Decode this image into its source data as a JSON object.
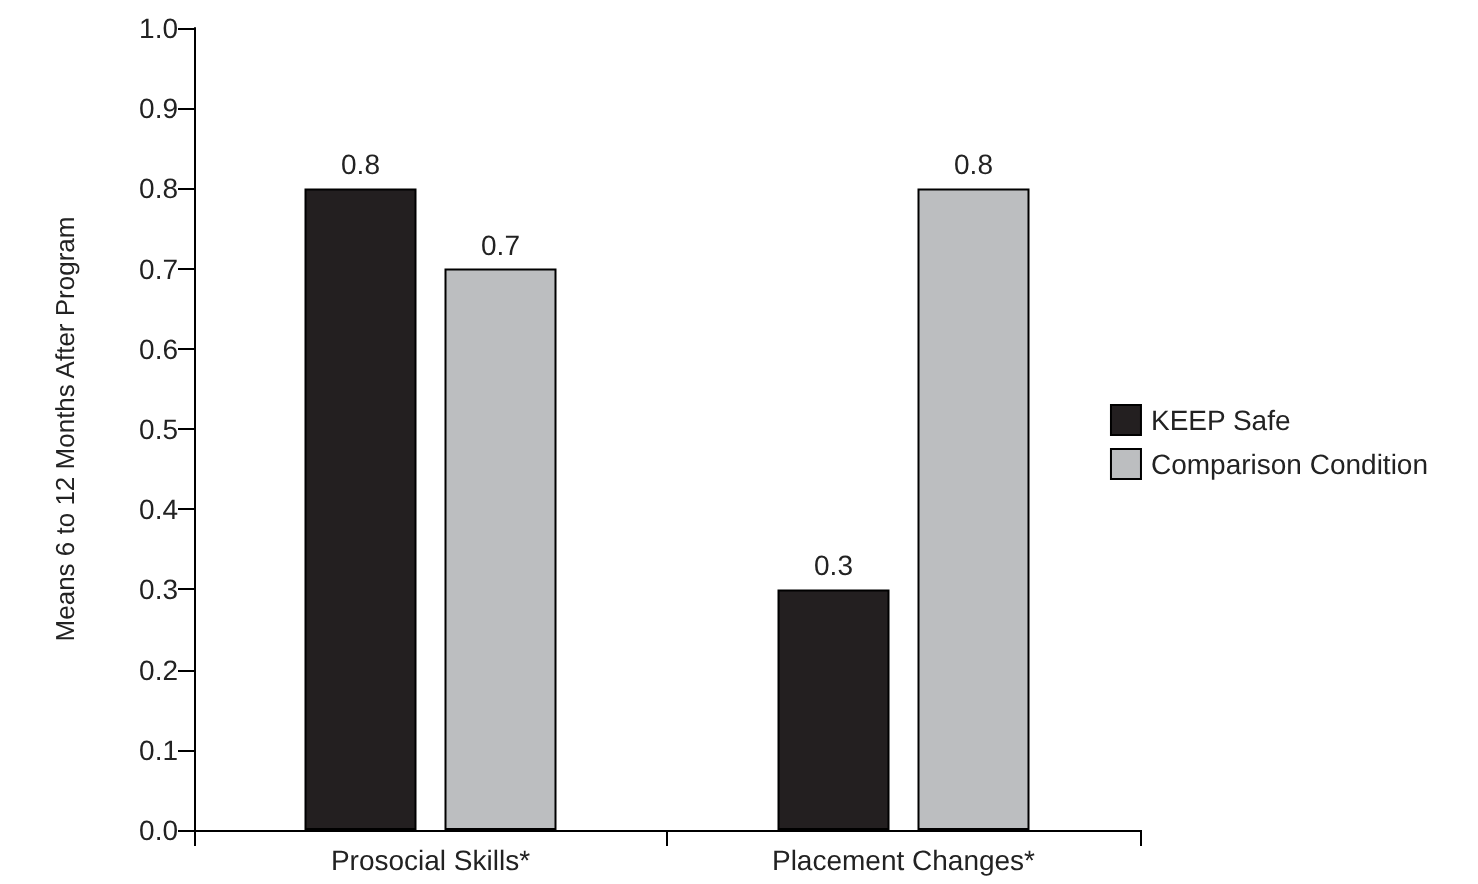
{
  "chart_data": {
    "type": "bar",
    "ylabel": "Means 6 to 12 Months After Program",
    "categories": [
      "Prosocial Skills*",
      "Placement Changes*"
    ],
    "series": [
      {
        "name": "KEEP Safe",
        "color": "#231f20",
        "values": [
          0.8,
          0.3
        ]
      },
      {
        "name": "Comparison Condition",
        "color": "#bcbec0",
        "values": [
          0.7,
          0.8
        ]
      }
    ],
    "ylim": [
      0,
      1
    ],
    "yticks": [
      {
        "value": 0,
        "label": "0.0"
      },
      0.1,
      0.2,
      0.3,
      0.4,
      0.5,
      0.6,
      0.7,
      0.8,
      0.9,
      {
        "value": 1,
        "label": "1.0"
      }
    ],
    "data_labels": true,
    "grid": false,
    "legend": "right"
  }
}
